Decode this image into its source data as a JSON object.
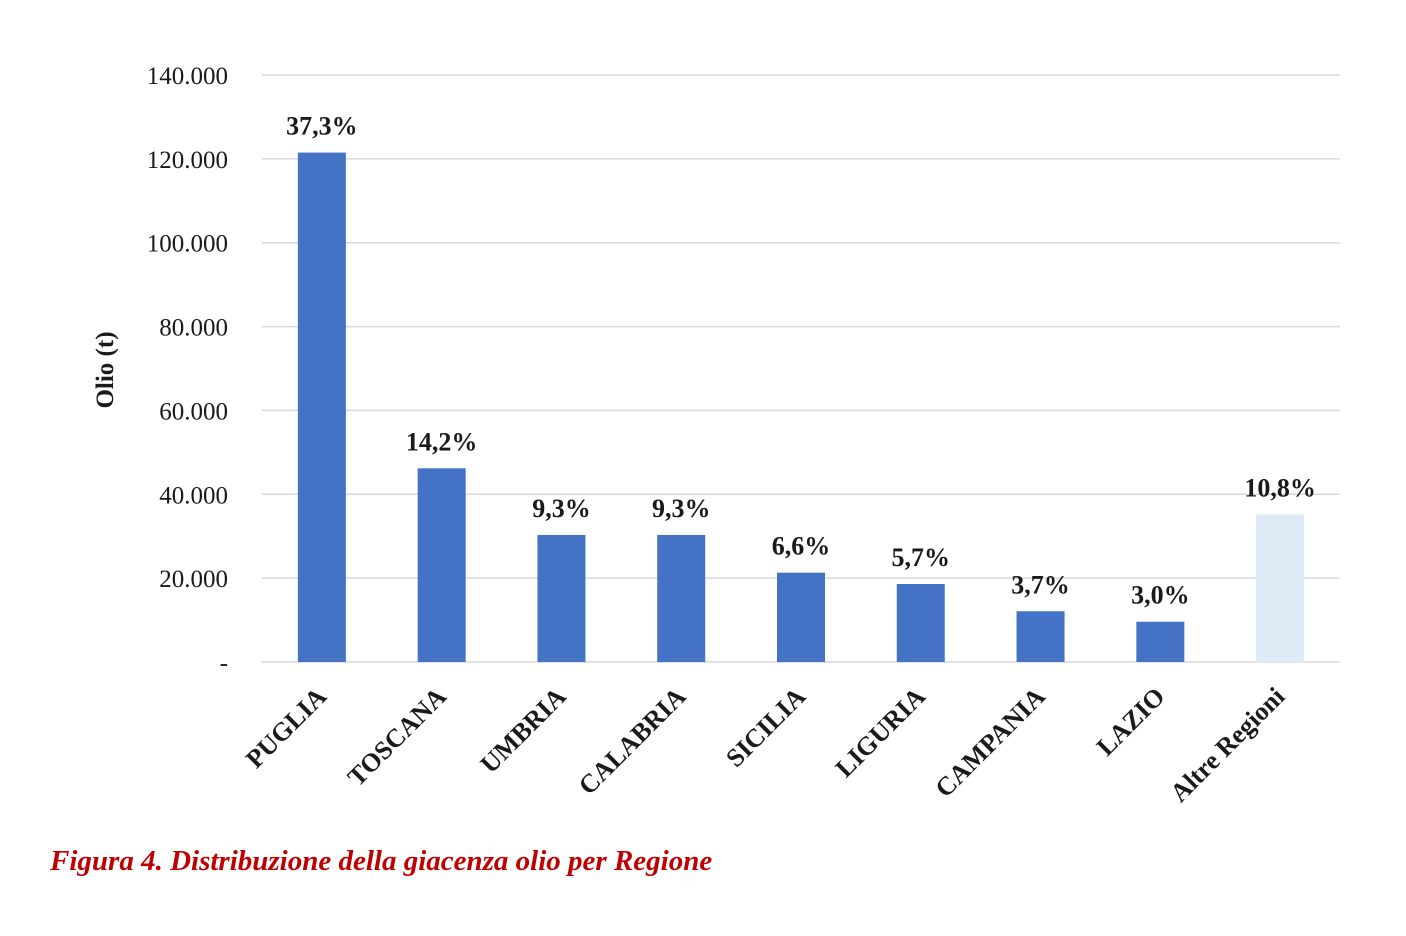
{
  "chart_data": {
    "type": "bar",
    "ylabel": "Olio (t)",
    "ylim": [
      0,
      140000
    ],
    "yticks": [
      0,
      20000,
      40000,
      60000,
      80000,
      100000,
      120000,
      140000
    ],
    "ytick_labels": [
      "-",
      "20.000",
      "40.000",
      "60.000",
      "80.000",
      "100.000",
      "120.000",
      "140.000"
    ],
    "grid": true,
    "categories": [
      "PUGLIA",
      "TOSCANA",
      "UMBRIA",
      "CALABRIA",
      "SICILIA",
      "LIGURIA",
      "CAMPANIA",
      "LAZIO",
      "Altre Regioni"
    ],
    "values": [
      121500,
      46200,
      30300,
      30300,
      21300,
      18600,
      12100,
      9600,
      35200
    ],
    "data_labels": [
      "37,3%",
      "14,2%",
      "9,3%",
      "9,3%",
      "6,6%",
      "5,7%",
      "3,7%",
      "3,0%",
      "10,8%"
    ],
    "colors": [
      "#4472c4",
      "#4472c4",
      "#4472c4",
      "#4472c4",
      "#4472c4",
      "#4472c4",
      "#4472c4",
      "#4472c4",
      "#deeaf6"
    ]
  },
  "caption": "Figura 4. Distribuzione della giacenza olio per Regione"
}
